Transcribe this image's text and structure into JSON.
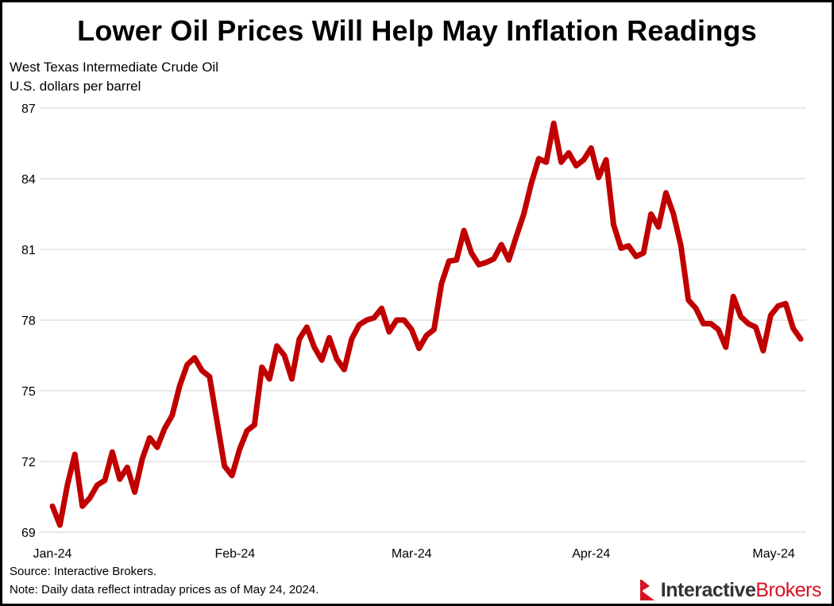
{
  "chart_data": {
    "type": "line",
    "title": "Lower Oil Prices Will Help May Inflation Readings",
    "subtitle": "West Texas Intermediate Crude Oil",
    "ylabel": "U.S. dollars per barrel",
    "ylim": [
      69,
      87
    ],
    "yticks": [
      69,
      72,
      75,
      78,
      81,
      84,
      87
    ],
    "xticks": [
      "Jan-24",
      "Feb-24",
      "Mar-24",
      "Apr-24",
      "May-24"
    ],
    "grid": true,
    "line_color": "#c00000",
    "dates": [
      "2024-01-02",
      "2024-01-03",
      "2024-01-04",
      "2024-01-05",
      "2024-01-08",
      "2024-01-09",
      "2024-01-10",
      "2024-01-11",
      "2024-01-12",
      "2024-01-16",
      "2024-01-17",
      "2024-01-18",
      "2024-01-19",
      "2024-01-22",
      "2024-01-23",
      "2024-01-24",
      "2024-01-25",
      "2024-01-26",
      "2024-01-29",
      "2024-01-30",
      "2024-01-31",
      "2024-02-01",
      "2024-02-02",
      "2024-02-05",
      "2024-02-06",
      "2024-02-07",
      "2024-02-08",
      "2024-02-09",
      "2024-02-12",
      "2024-02-13",
      "2024-02-14",
      "2024-02-15",
      "2024-02-16",
      "2024-02-20",
      "2024-02-21",
      "2024-02-22",
      "2024-02-23",
      "2024-02-26",
      "2024-02-27",
      "2024-02-28",
      "2024-02-29",
      "2024-03-01",
      "2024-03-04",
      "2024-03-05",
      "2024-03-06",
      "2024-03-07",
      "2024-03-08",
      "2024-03-11",
      "2024-03-12",
      "2024-03-13",
      "2024-03-14",
      "2024-03-15",
      "2024-03-18",
      "2024-03-19",
      "2024-03-20",
      "2024-03-21",
      "2024-03-22",
      "2024-03-25",
      "2024-03-26",
      "2024-03-27",
      "2024-03-28",
      "2024-04-01",
      "2024-04-02",
      "2024-04-03",
      "2024-04-04",
      "2024-04-05",
      "2024-04-08",
      "2024-04-09",
      "2024-04-10",
      "2024-04-11",
      "2024-04-12",
      "2024-04-15",
      "2024-04-16",
      "2024-04-17",
      "2024-04-18",
      "2024-04-19",
      "2024-04-22",
      "2024-04-23",
      "2024-04-24",
      "2024-04-25",
      "2024-04-26",
      "2024-04-29",
      "2024-04-30",
      "2024-05-01",
      "2024-05-02",
      "2024-05-03",
      "2024-05-06",
      "2024-05-07",
      "2024-05-08",
      "2024-05-09",
      "2024-05-10",
      "2024-05-13",
      "2024-05-14",
      "2024-05-15",
      "2024-05-16",
      "2024-05-17",
      "2024-05-20",
      "2024-05-21",
      "2024-05-22",
      "2024-05-23",
      "2024-05-24"
    ],
    "values": [
      70.1,
      69.3,
      71.0,
      72.3,
      70.1,
      70.45,
      71.0,
      71.2,
      72.4,
      71.25,
      71.75,
      70.7,
      72.1,
      73.0,
      72.6,
      73.4,
      73.95,
      75.2,
      76.1,
      76.4,
      75.85,
      75.6,
      73.7,
      71.8,
      71.4,
      72.5,
      73.3,
      73.55,
      76.0,
      75.5,
      76.9,
      76.5,
      75.5,
      77.2,
      77.7,
      76.85,
      76.3,
      77.25,
      76.35,
      75.9,
      77.2,
      77.8,
      78.0,
      78.1,
      78.5,
      77.5,
      78.0,
      78.0,
      77.6,
      76.8,
      77.35,
      77.6,
      79.55,
      80.5,
      80.55,
      81.8,
      80.85,
      80.35,
      80.45,
      80.6,
      81.2,
      80.55,
      81.55,
      82.5,
      83.8,
      84.85,
      84.7,
      86.35,
      84.7,
      85.1,
      84.55,
      84.8,
      85.3,
      84.05,
      84.8,
      82.05,
      81.05,
      81.15,
      80.7,
      80.85,
      82.5,
      81.95,
      83.4,
      82.5,
      81.15,
      78.85,
      78.5,
      77.85,
      77.85,
      77.6,
      76.85,
      79.0,
      78.15,
      77.85,
      77.7,
      76.7,
      78.2,
      78.6,
      78.7,
      77.65,
      77.2
    ]
  },
  "notes": {
    "source": "Source: Interactive Brokers.",
    "note": "Note: Daily data reflect intraday prices as of May 24, 2024."
  },
  "logo": {
    "part1": "Interactive",
    "part2": "Brokers",
    "color": "#d81222"
  }
}
